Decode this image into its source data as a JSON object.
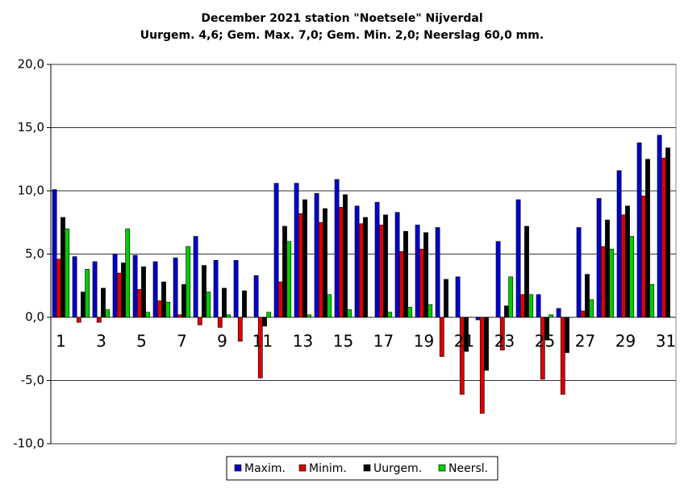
{
  "chart_data": {
    "type": "bar",
    "title": "December 2021 station \"Noetsele\" Nijverdal",
    "subtitle": "Uurgem. 4,6; Gem. Max. 7,0; Gem. Min. 2,0;  Neerslag 60,0 mm.",
    "categories": [
      "1",
      null,
      "3",
      null,
      "5",
      null,
      "7",
      null,
      "9",
      null,
      "11",
      null,
      "13",
      null,
      "15",
      null,
      "17",
      null,
      "19",
      null,
      "21",
      null,
      "23",
      null,
      "25",
      null,
      "27",
      null,
      "29",
      null,
      "31"
    ],
    "series": [
      {
        "name": "Maxim.",
        "color": "#0000cc",
        "values": [
          10.1,
          4.8,
          4.4,
          5.0,
          4.9,
          4.4,
          4.7,
          6.4,
          4.5,
          4.5,
          3.3,
          10.6,
          10.6,
          9.8,
          10.9,
          8.8,
          9.1,
          8.3,
          7.3,
          7.1,
          3.2,
          -0.2,
          6.0,
          9.3,
          1.8,
          0.7,
          7.1,
          9.4,
          11.6,
          13.8,
          14.4
        ]
      },
      {
        "name": "Minim.",
        "color": "#dd0000",
        "values": [
          4.6,
          -0.4,
          -0.4,
          3.5,
          2.2,
          1.3,
          0.2,
          -0.6,
          -0.8,
          -1.9,
          -4.8,
          2.8,
          8.2,
          7.5,
          8.7,
          7.4,
          7.3,
          5.2,
          5.4,
          -3.1,
          -6.1,
          -7.6,
          -2.6,
          1.8,
          -4.9,
          -6.1,
          0.5,
          5.6,
          8.1,
          9.6,
          12.6
        ]
      },
      {
        "name": "Uurgem.",
        "color": "#000000",
        "values": [
          7.9,
          2.0,
          2.3,
          4.3,
          4.0,
          2.8,
          2.6,
          4.1,
          2.3,
          2.1,
          -0.7,
          7.2,
          9.3,
          8.6,
          9.7,
          7.9,
          8.1,
          6.8,
          6.7,
          3.0,
          -2.7,
          -4.2,
          0.9,
          7.2,
          -1.8,
          -2.8,
          3.4,
          7.7,
          8.8,
          12.5,
          13.4
        ]
      },
      {
        "name": "Neersl.",
        "color": "#00cc00",
        "values": [
          7.0,
          3.8,
          0.6,
          7.0,
          0.4,
          1.2,
          5.6,
          2.0,
          0.2,
          0,
          0.4,
          6.0,
          0.2,
          1.8,
          0.6,
          0,
          0.4,
          0.8,
          1.0,
          0,
          0,
          0,
          3.2,
          1.8,
          0.2,
          0,
          1.4,
          5.4,
          6.4,
          2.6,
          0
        ]
      }
    ],
    "ylim": [
      -10,
      20
    ],
    "yticks": [
      {
        "value": -10,
        "label": "-10,0"
      },
      {
        "value": -5,
        "label": "-5,0"
      },
      {
        "value": 0,
        "label": "0,0"
      },
      {
        "value": 5,
        "label": "5,0"
      },
      {
        "value": 10,
        "label": "10,0"
      },
      {
        "value": 15,
        "label": "15,0"
      },
      {
        "value": 20,
        "label": "20,0"
      }
    ],
    "grid": true,
    "legend": "bottom"
  }
}
